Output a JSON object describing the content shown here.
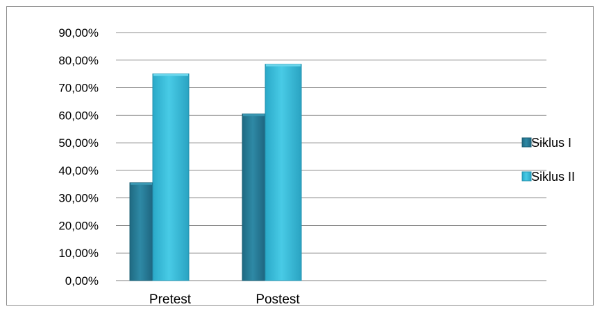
{
  "chart_data": {
    "type": "bar",
    "title": "",
    "xlabel": "",
    "ylabel": "",
    "categories": [
      "Pretest",
      "Postest"
    ],
    "series": [
      {
        "name": "Siklus I",
        "values": [
          35.5,
          60.5
        ],
        "color": "#2a7f9a"
      },
      {
        "name": "Siklus II",
        "values": [
          75.0,
          78.5
        ],
        "color": "#3fc0dc"
      }
    ],
    "ylim": [
      0,
      90
    ],
    "yticks": [
      "0,00%",
      "10,00%",
      "20,00%",
      "30,00%",
      "40,00%",
      "50,00%",
      "60,00%",
      "70,00%",
      "80,00%",
      "90,00%"
    ],
    "grid": true,
    "legend_position": "right"
  }
}
